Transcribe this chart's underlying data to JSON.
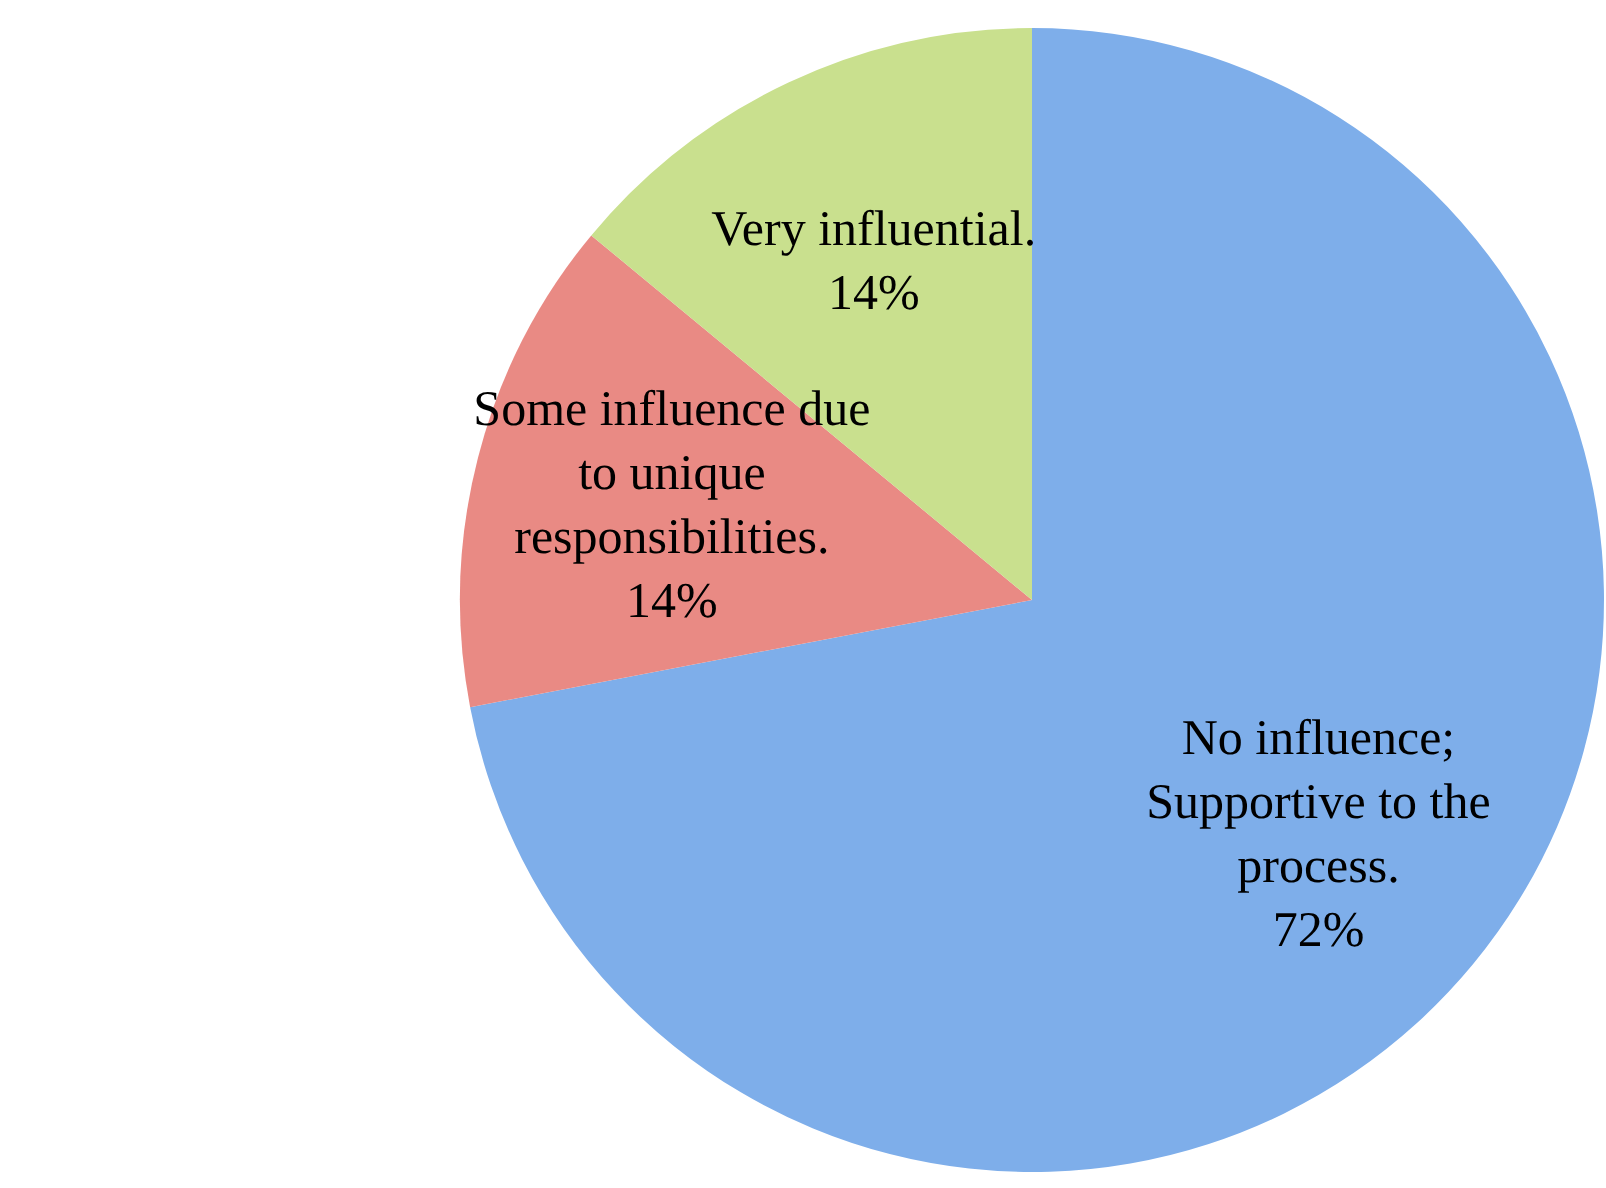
{
  "chart_data": {
    "type": "pie",
    "categories": [
      "No influence; Supportive to the process.",
      "Some influence due to unique responsibilities.",
      "Very influential."
    ],
    "values": [
      72,
      14,
      14
    ],
    "colors": [
      "#7eaeea",
      "#e98a84",
      "#c9e08e"
    ],
    "value_labels": [
      "72%",
      "14%",
      "14%"
    ],
    "legend": false
  }
}
